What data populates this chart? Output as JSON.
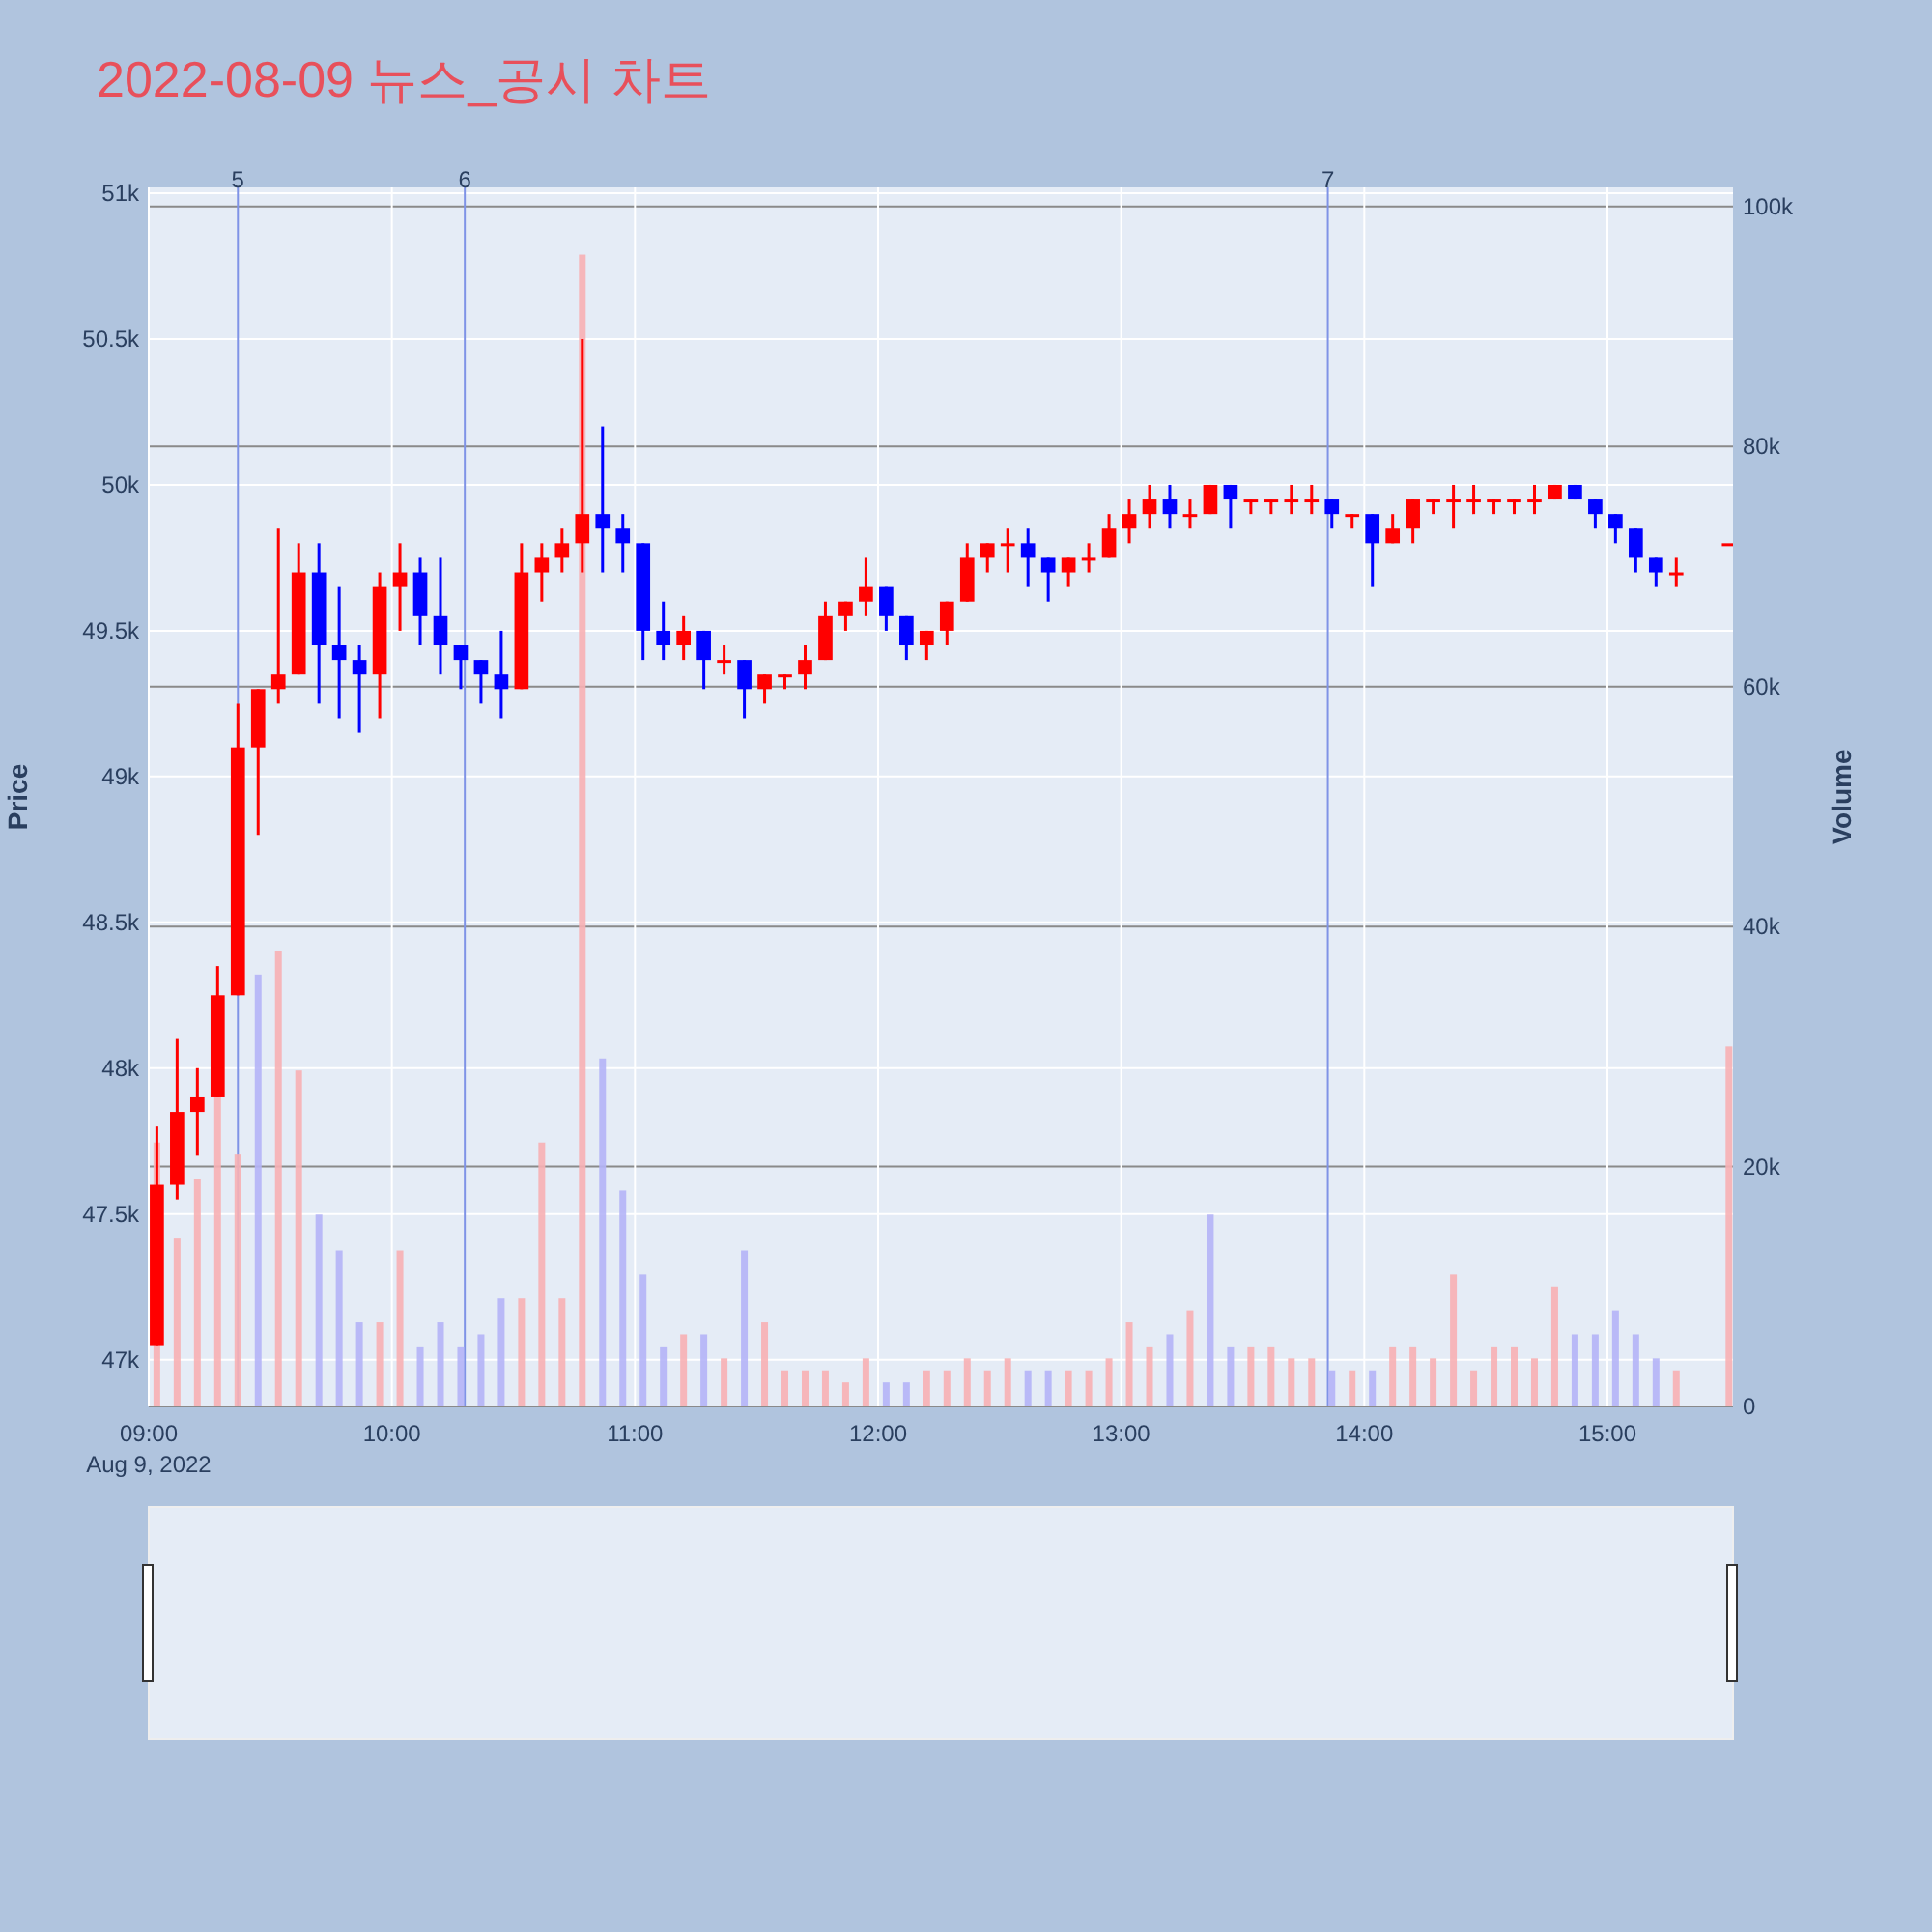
{
  "chart_data": {
    "type": "candlestick",
    "title": "2022-08-09 뉴스_공시 차트",
    "ylabel": "Price",
    "y2label": "Volume",
    "x": [
      "2022-08-09T09:02",
      "2022-08-09T09:07",
      "2022-08-09T09:12",
      "2022-08-09T09:17",
      "2022-08-09T09:22",
      "2022-08-09T09:27",
      "2022-08-09T09:32",
      "2022-08-09T09:37",
      "2022-08-09T09:42",
      "2022-08-09T09:47",
      "2022-08-09T09:52",
      "2022-08-09T09:57",
      "2022-08-09T10:02",
      "2022-08-09T10:07",
      "2022-08-09T10:12",
      "2022-08-09T10:17",
      "2022-08-09T10:22",
      "2022-08-09T10:27",
      "2022-08-09T10:32",
      "2022-08-09T10:37",
      "2022-08-09T10:42",
      "2022-08-09T10:47",
      "2022-08-09T10:52",
      "2022-08-09T10:57",
      "2022-08-09T11:02",
      "2022-08-09T11:07",
      "2022-08-09T11:12",
      "2022-08-09T11:17",
      "2022-08-09T11:22",
      "2022-08-09T11:27",
      "2022-08-09T11:32",
      "2022-08-09T11:37",
      "2022-08-09T11:42",
      "2022-08-09T11:47",
      "2022-08-09T11:52",
      "2022-08-09T11:57",
      "2022-08-09T12:02",
      "2022-08-09T12:07",
      "2022-08-09T12:12",
      "2022-08-09T12:17",
      "2022-08-09T12:22",
      "2022-08-09T12:27",
      "2022-08-09T12:32",
      "2022-08-09T12:37",
      "2022-08-09T12:42",
      "2022-08-09T12:47",
      "2022-08-09T12:52",
      "2022-08-09T12:57",
      "2022-08-09T13:02",
      "2022-08-09T13:07",
      "2022-08-09T13:12",
      "2022-08-09T13:17",
      "2022-08-09T13:22",
      "2022-08-09T13:27",
      "2022-08-09T13:32",
      "2022-08-09T13:37",
      "2022-08-09T13:42",
      "2022-08-09T13:47",
      "2022-08-09T13:52",
      "2022-08-09T13:57",
      "2022-08-09T14:02",
      "2022-08-09T14:07",
      "2022-08-09T14:12",
      "2022-08-09T14:17",
      "2022-08-09T14:22",
      "2022-08-09T14:27",
      "2022-08-09T14:32",
      "2022-08-09T14:37",
      "2022-08-09T14:42",
      "2022-08-09T14:47",
      "2022-08-09T14:52",
      "2022-08-09T14:57",
      "2022-08-09T15:02",
      "2022-08-09T15:07",
      "2022-08-09T15:12",
      "2022-08-09T15:17",
      "2022-08-09T15:30"
    ],
    "ohlc": [
      [
        47050,
        47800,
        47050,
        47600
      ],
      [
        47600,
        48100,
        47550,
        47850
      ],
      [
        47850,
        48000,
        47700,
        47900
      ],
      [
        47900,
        48350,
        47900,
        48250
      ],
      [
        48250,
        49250,
        48250,
        49100
      ],
      [
        49100,
        49300,
        48800,
        49300
      ],
      [
        49300,
        49850,
        49250,
        49350
      ],
      [
        49350,
        49800,
        49350,
        49700
      ],
      [
        49700,
        49800,
        49250,
        49450
      ],
      [
        49450,
        49650,
        49200,
        49400
      ],
      [
        49400,
        49450,
        49150,
        49350
      ],
      [
        49350,
        49700,
        49200,
        49650
      ],
      [
        49650,
        49800,
        49500,
        49700
      ],
      [
        49700,
        49750,
        49450,
        49550
      ],
      [
        49550,
        49750,
        49350,
        49450
      ],
      [
        49450,
        49450,
        49300,
        49400
      ],
      [
        49400,
        49400,
        49250,
        49350
      ],
      [
        49350,
        49500,
        49200,
        49300
      ],
      [
        49300,
        49800,
        49300,
        49700
      ],
      [
        49700,
        49800,
        49600,
        49750
      ],
      [
        49750,
        49850,
        49700,
        49800
      ],
      [
        49800,
        50500,
        49700,
        49900
      ],
      [
        49900,
        50200,
        49700,
        49850
      ],
      [
        49850,
        49900,
        49700,
        49800
      ],
      [
        49800,
        49800,
        49400,
        49500
      ],
      [
        49500,
        49600,
        49400,
        49450
      ],
      [
        49450,
        49550,
        49400,
        49500
      ],
      [
        49500,
        49500,
        49300,
        49400
      ],
      [
        49400,
        49450,
        49350,
        49400
      ],
      [
        49400,
        49400,
        49200,
        49300
      ],
      [
        49300,
        49350,
        49250,
        49350
      ],
      [
        49350,
        49350,
        49300,
        49350
      ],
      [
        49350,
        49450,
        49300,
        49400
      ],
      [
        49400,
        49600,
        49400,
        49550
      ],
      [
        49550,
        49600,
        49500,
        49600
      ],
      [
        49600,
        49750,
        49550,
        49650
      ],
      [
        49650,
        49650,
        49500,
        49550
      ],
      [
        49550,
        49550,
        49400,
        49450
      ],
      [
        49450,
        49500,
        49400,
        49500
      ],
      [
        49500,
        49600,
        49450,
        49600
      ],
      [
        49600,
        49800,
        49600,
        49750
      ],
      [
        49750,
        49800,
        49700,
        49800
      ],
      [
        49800,
        49850,
        49700,
        49800
      ],
      [
        49800,
        49850,
        49650,
        49750
      ],
      [
        49750,
        49750,
        49600,
        49700
      ],
      [
        49700,
        49750,
        49650,
        49750
      ],
      [
        49750,
        49800,
        49700,
        49750
      ],
      [
        49750,
        49900,
        49750,
        49850
      ],
      [
        49850,
        49950,
        49800,
        49900
      ],
      [
        49900,
        50000,
        49850,
        49950
      ],
      [
        49950,
        50000,
        49850,
        49900
      ],
      [
        49900,
        49950,
        49850,
        49900
      ],
      [
        49900,
        50000,
        49900,
        50000
      ],
      [
        50000,
        50000,
        49850,
        49950
      ],
      [
        49950,
        49950,
        49900,
        49950
      ],
      [
        49950,
        49950,
        49900,
        49950
      ],
      [
        49950,
        50000,
        49900,
        49950
      ],
      [
        49950,
        50000,
        49900,
        49950
      ],
      [
        49950,
        49950,
        49850,
        49900
      ],
      [
        49900,
        49900,
        49850,
        49900
      ],
      [
        49900,
        49900,
        49650,
        49800
      ],
      [
        49800,
        49900,
        49800,
        49850
      ],
      [
        49850,
        49950,
        49800,
        49950
      ],
      [
        49950,
        49950,
        49900,
        49950
      ],
      [
        49950,
        50000,
        49850,
        49950
      ],
      [
        49950,
        50000,
        49900,
        49950
      ],
      [
        49950,
        49950,
        49900,
        49950
      ],
      [
        49950,
        49950,
        49900,
        49950
      ],
      [
        49950,
        50000,
        49900,
        49950
      ],
      [
        49950,
        50000,
        49950,
        50000
      ],
      [
        50000,
        50000,
        49950,
        49950
      ],
      [
        49950,
        49950,
        49850,
        49900
      ],
      [
        49900,
        49900,
        49800,
        49850
      ],
      [
        49850,
        49850,
        49700,
        49750
      ],
      [
        49750,
        49750,
        49650,
        49700
      ],
      [
        49700,
        49750,
        49650,
        49700
      ],
      [
        49800,
        49800,
        49800,
        49800
      ]
    ],
    "colors": [
      "#ff0000",
      "#ff0000",
      "#ff0000",
      "#ff0000",
      "#ff0000",
      "#ff0000",
      "#ff0000",
      "#ff0000",
      "#0000ff",
      "#0000ff",
      "#0000ff",
      "#ff0000",
      "#ff0000",
      "#0000ff",
      "#0000ff",
      "#0000ff",
      "#0000ff",
      "#0000ff",
      "#ff0000",
      "#ff0000",
      "#ff0000",
      "#ff0000",
      "#0000ff",
      "#0000ff",
      "#0000ff",
      "#0000ff",
      "#ff0000",
      "#0000ff",
      "#ff0000",
      "#0000ff",
      "#ff0000",
      "#ff0000",
      "#ff0000",
      "#ff0000",
      "#ff0000",
      "#ff0000",
      "#0000ff",
      "#0000ff",
      "#ff0000",
      "#ff0000",
      "#ff0000",
      "#ff0000",
      "#ff0000",
      "#0000ff",
      "#0000ff",
      "#ff0000",
      "#ff0000",
      "#ff0000",
      "#ff0000",
      "#ff0000",
      "#0000ff",
      "#ff0000",
      "#ff0000",
      "#0000ff",
      "#ff0000",
      "#ff0000",
      "#ff0000",
      "#ff0000",
      "#0000ff",
      "#ff0000",
      "#0000ff",
      "#ff0000",
      "#ff0000",
      "#ff0000",
      "#ff0000",
      "#ff0000",
      "#ff0000",
      "#ff0000",
      "#ff0000",
      "#ff0000",
      "#0000ff",
      "#0000ff",
      "#0000ff",
      "#0000ff",
      "#0000ff",
      "#ff0000",
      "#ff0000"
    ],
    "series": [
      {
        "type": "bar",
        "axis": "y2",
        "values": [
          22000,
          14000,
          19000,
          26000,
          21000,
          36000,
          38000,
          28000,
          16000,
          13000,
          7000,
          7000,
          13000,
          5000,
          7000,
          5000,
          6000,
          9000,
          9000,
          22000,
          9000,
          96000,
          29000,
          18000,
          11000,
          5000,
          6000,
          6000,
          4000,
          13000,
          7000,
          3000,
          3000,
          3000,
          2000,
          4000,
          2000,
          2000,
          3000,
          3000,
          4000,
          3000,
          4000,
          3000,
          3000,
          3000,
          3000,
          4000,
          7000,
          5000,
          6000,
          8000,
          16000,
          5000,
          5000,
          5000,
          4000,
          4000,
          3000,
          3000,
          3000,
          5000,
          5000,
          4000,
          11000,
          3000,
          5000,
          5000,
          4000,
          10000,
          6000,
          6000,
          8000,
          6000,
          4000,
          3000,
          30000
        ],
        "colors": [
          "#f7b0b4",
          "#f7b0b4",
          "#f7b0b4",
          "#f7b0b4",
          "#f7b0b4",
          "#b4b4f7",
          "#f7b0b4",
          "#f7b0b4",
          "#b4b4f7",
          "#b4b4f7",
          "#b4b4f7",
          "#f7b0b4",
          "#f7b0b4",
          "#b4b4f7",
          "#b4b4f7",
          "#b4b4f7",
          "#b4b4f7",
          "#b4b4f7",
          "#f7b0b4",
          "#f7b0b4",
          "#f7b0b4",
          "#f7b0b4",
          "#b4b4f7",
          "#b4b4f7",
          "#b4b4f7",
          "#b4b4f7",
          "#f7b0b4",
          "#b4b4f7",
          "#f7b0b4",
          "#b4b4f7",
          "#f7b0b4",
          "#f7b0b4",
          "#f7b0b4",
          "#f7b0b4",
          "#f7b0b4",
          "#f7b0b4",
          "#b4b4f7",
          "#b4b4f7",
          "#f7b0b4",
          "#f7b0b4",
          "#f7b0b4",
          "#f7b0b4",
          "#f7b0b4",
          "#b4b4f7",
          "#b4b4f7",
          "#f7b0b4",
          "#f7b0b4",
          "#f7b0b4",
          "#f7b0b4",
          "#f7b0b4",
          "#b4b4f7",
          "#f7b0b4",
          "#b4b4f7",
          "#b4b4f7",
          "#f7b0b4",
          "#f7b0b4",
          "#f7b0b4",
          "#f7b0b4",
          "#b4b4f7",
          "#f7b0b4",
          "#b4b4f7",
          "#f7b0b4",
          "#f7b0b4",
          "#f7b0b4",
          "#f7b0b4",
          "#f7b0b4",
          "#f7b0b4",
          "#f7b0b4",
          "#f7b0b4",
          "#f7b0b4",
          "#b4b4f7",
          "#b4b4f7",
          "#b4b4f7",
          "#b4b4f7",
          "#b4b4f7",
          "#f7b0b4",
          "#f7b0b4"
        ]
      }
    ],
    "xlim": [
      "2022-08-09T09:00",
      "2022-08-09T15:31"
    ],
    "xticks": [
      {
        "value": "2022-08-09T09:00",
        "label": "09:00\nAug 9, 2022"
      },
      {
        "value": "2022-08-09T10:00",
        "label": "10:00"
      },
      {
        "value": "2022-08-09T11:00",
        "label": "11:00"
      },
      {
        "value": "2022-08-09T12:00",
        "label": "12:00"
      },
      {
        "value": "2022-08-09T13:00",
        "label": "13:00"
      },
      {
        "value": "2022-08-09T14:00",
        "label": "14:00"
      },
      {
        "value": "2022-08-09T15:00",
        "label": "15:00"
      }
    ],
    "ylim": [
      46840,
      51020
    ],
    "yticks": [
      {
        "value": 47000,
        "label": "47k"
      },
      {
        "value": 47500,
        "label": "47.5k"
      },
      {
        "value": 48000,
        "label": "48k"
      },
      {
        "value": 48500,
        "label": "48.5k"
      },
      {
        "value": 49000,
        "label": "49k"
      },
      {
        "value": 49500,
        "label": "49.5k"
      },
      {
        "value": 50000,
        "label": "50k"
      },
      {
        "value": 50500,
        "label": "50.5k"
      },
      {
        "value": 51000,
        "label": "51k"
      }
    ],
    "y2lim": [
      0,
      101600
    ],
    "y2ticks": [
      0,
      {
        "value": 20000,
        "label": "20k"
      },
      {
        "value": 40000,
        "label": "40k"
      },
      {
        "value": 60000,
        "label": "60k"
      },
      {
        "value": 80000,
        "label": "80k"
      },
      {
        "value": 100000,
        "label": "100k"
      }
    ],
    "ref_lines": [
      {
        "axis": "x",
        "value": "2022-08-09T09:22",
        "label": "5",
        "color": "#7f93e6"
      },
      {
        "axis": "x",
        "value": "2022-08-09T10:18",
        "label": "6",
        "color": "#7f93e6"
      },
      {
        "axis": "x",
        "value": "2022-08-09T13:51",
        "label": "7",
        "color": "#7f93e6"
      }
    ],
    "grid": true
  }
}
